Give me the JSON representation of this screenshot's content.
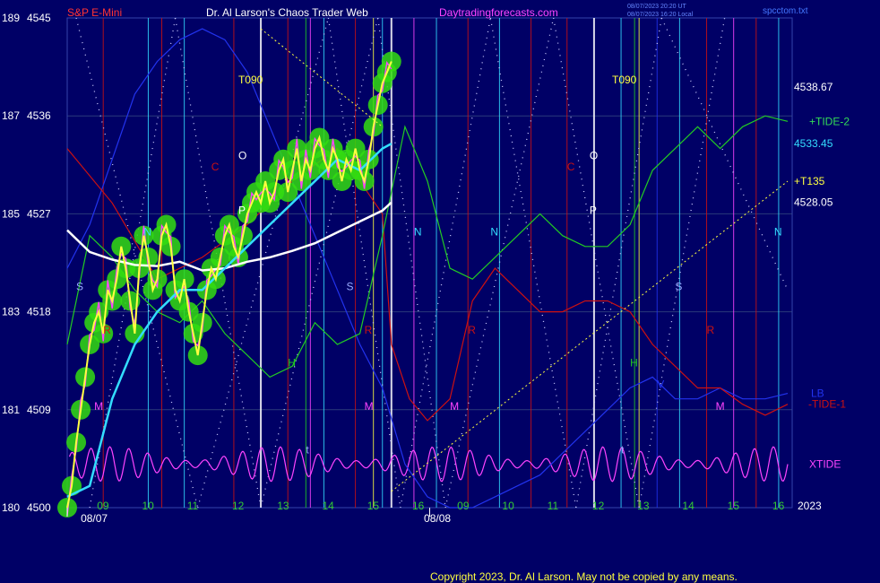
{
  "header": {
    "instrument": "S&P E-Mini",
    "site": "Dr. Al Larson's Chaos Trader Web",
    "link": "Daytradingforecasts.com",
    "ts1": "08/07/2023 20:20 UT",
    "ts2": "08/07/2023 16:20 Local",
    "file": "spcctom.txt"
  },
  "footer": {
    "copyright": "Copyright 2023, Dr. Al Larson. May not be copied by any means."
  },
  "colors": {
    "bg": "#000066",
    "grid": "#2a3a7a",
    "price": "#ffff40",
    "glow": "#33dd11",
    "magenta": "#ff44ff",
    "red": "#cc1111",
    "cyan": "#33ddff",
    "white": "#ffffff",
    "green": "#22cc22",
    "blue": "#2233ee",
    "orange": "#ff8800"
  },
  "chart_data": {
    "type": "line",
    "y_axis_left": [
      {
        "angle": "189",
        "price": "4545"
      },
      {
        "angle": "187",
        "price": "4536"
      },
      {
        "angle": "185",
        "price": "4527"
      },
      {
        "angle": "183",
        "price": "4518"
      },
      {
        "angle": "181",
        "price": "4509"
      },
      {
        "angle": "180",
        "price": "4500"
      }
    ],
    "ylim": [
      4500,
      4545
    ],
    "x_hour_ticks": [
      "09",
      "10",
      "11",
      "12",
      "13",
      "14",
      "15",
      "16",
      "09",
      "10",
      "11",
      "12",
      "13",
      "14",
      "15",
      "16"
    ],
    "x_dates": [
      "08/07",
      "08/08"
    ],
    "year": "2023",
    "right_labels": [
      {
        "text": "4538.67",
        "color": "#ffffff",
        "value": 4538.67
      },
      {
        "text": "+TIDE-2",
        "color": "#33dd55",
        "value": 4535.5
      },
      {
        "text": "4533.45",
        "color": "#33ddff",
        "value": 4533.45
      },
      {
        "text": "+T135",
        "color": "#ffff40",
        "value": 4530
      },
      {
        "text": "4528.05",
        "color": "#ffffff",
        "value": 4528.05
      },
      {
        "text": "LB",
        "color": "#2233ee",
        "value": 4510.5
      },
      {
        "text": "-TIDE-1",
        "color": "#cc1111",
        "value": 4509.5
      },
      {
        "text": "XTIDE",
        "color": "#ff44ff",
        "value": 4504
      }
    ],
    "chart_labels": [
      {
        "text": "T090",
        "color": "#ffff40"
      },
      {
        "text": "T090",
        "color": "#ffff40"
      },
      {
        "text": "O",
        "color": "#ffffff"
      },
      {
        "text": "O",
        "color": "#ffffff"
      },
      {
        "text": "P",
        "color": "#ffffff"
      },
      {
        "text": "P",
        "color": "#ffffff"
      },
      {
        "text": "C",
        "color": "#cc1111"
      },
      {
        "text": "C",
        "color": "#cc1111"
      },
      {
        "text": "N",
        "color": "#33ddff"
      },
      {
        "text": "N",
        "color": "#33ddff"
      },
      {
        "text": "N",
        "color": "#33ddff"
      },
      {
        "text": "N",
        "color": "#33ddff"
      },
      {
        "text": "S",
        "color": "#99aaff"
      },
      {
        "text": "S",
        "color": "#99aaff"
      },
      {
        "text": "S",
        "color": "#99aaff"
      },
      {
        "text": "R",
        "color": "#cc1111"
      },
      {
        "text": "R",
        "color": "#cc1111"
      },
      {
        "text": "R",
        "color": "#cc1111"
      },
      {
        "text": "R",
        "color": "#cc1111"
      },
      {
        "text": "M",
        "color": "#ff44ff"
      },
      {
        "text": "M",
        "color": "#ff44ff"
      },
      {
        "text": "M",
        "color": "#ff44ff"
      },
      {
        "text": "M",
        "color": "#ff44ff"
      },
      {
        "text": "H",
        "color": "#22cc22"
      },
      {
        "text": "H",
        "color": "#22cc22"
      },
      {
        "text": "t",
        "color": "#99aaff"
      },
      {
        "text": "t",
        "color": "#99aaff"
      },
      {
        "text": "V",
        "color": "#2233ee"
      }
    ],
    "series": [
      {
        "name": "price",
        "color": "#ffff40",
        "x": [
          0,
          0.1,
          0.2,
          0.3,
          0.4,
          0.5,
          0.6,
          0.7,
          0.8,
          0.9,
          1,
          1.1,
          1.2,
          1.3,
          1.4,
          1.5,
          1.6,
          1.7,
          1.8,
          1.9,
          2,
          2.1,
          2.2,
          2.3,
          2.4,
          2.5,
          2.6,
          2.7,
          2.8,
          2.9,
          3,
          3.1,
          3.2,
          3.3,
          3.4,
          3.5,
          3.6,
          3.7,
          3.8,
          3.9,
          4,
          4.1,
          4.2,
          4.3,
          4.4,
          4.5,
          4.6,
          4.7,
          4.8,
          4.9,
          5,
          5.1,
          5.2,
          5.3,
          5.4,
          5.5,
          5.6,
          5.7,
          5.8,
          5.9,
          6,
          6.1,
          6.2,
          6.3,
          6.4,
          6.5,
          6.6,
          6.7,
          6.8,
          6.9,
          7,
          7.1,
          7.2
        ],
        "y": [
          4500,
          4502,
          4506,
          4509,
          4512,
          4515,
          4517,
          4518,
          4516,
          4520,
          4519,
          4521,
          4524,
          4522,
          4519,
          4516,
          4522,
          4525,
          4523,
          4520,
          4521,
          4525,
          4526,
          4524,
          4520,
          4519,
          4521,
          4518,
          4516,
          4514,
          4517,
          4520,
          4522,
          4521,
          4523,
          4525,
          4526,
          4524,
          4523,
          4525,
          4527,
          4528,
          4529,
          4528,
          4530,
          4528,
          4529,
          4531,
          4532,
          4529,
          4531,
          4533,
          4530,
          4532,
          4531,
          4533,
          4534,
          4532,
          4531,
          4533,
          4532,
          4530,
          4532,
          4531,
          4533,
          4531,
          4530,
          4532,
          4535,
          4537,
          4539,
          4540,
          4541
        ]
      },
      {
        "name": "cyan average",
        "color": "#33ddff",
        "x": [
          0,
          0.5,
          1,
          1.5,
          2,
          2.5,
          3,
          3.5,
          4,
          4.5,
          5,
          5.5,
          6,
          6.5,
          7,
          7.2
        ],
        "y": [
          4501,
          4502,
          4510,
          4515,
          4518,
          4520,
          4520,
          4522,
          4524,
          4526,
          4528,
          4530,
          4532,
          4531,
          4533,
          4533.45
        ]
      },
      {
        "name": "white average",
        "color": "#ffffff",
        "x": [
          0,
          0.5,
          1,
          1.5,
          2,
          2.5,
          3,
          3.5,
          4,
          4.5,
          5,
          5.5,
          6,
          6.5,
          7,
          7.2
        ],
        "y": [
          4525.5,
          4523.5,
          4522.8,
          4522.3,
          4522.2,
          4522.6,
          4521.8,
          4522,
          4522.6,
          4523,
          4523.6,
          4524.3,
          4525.3,
          4526.3,
          4527.3,
          4528.05
        ]
      },
      {
        "name": "green tide",
        "color": "#22cc22",
        "x": [
          0,
          0.5,
          1,
          1.5,
          2,
          2.5,
          3,
          3.5,
          4,
          4.5,
          5,
          5.5,
          6,
          6.5,
          7,
          7.5,
          8,
          8.5,
          9,
          9.5,
          10,
          10.5,
          11,
          11.5,
          12,
          12.5,
          13,
          13.5,
          14,
          14.5,
          15,
          15.5,
          16
        ],
        "y": [
          4515,
          4525,
          4523,
          4520,
          4518,
          4517,
          4519,
          4516,
          4514,
          4512,
          4513,
          4517,
          4515,
          4516,
          4525,
          4535,
          4530,
          4522,
          4521,
          4523,
          4525,
          4527,
          4525,
          4524,
          4524,
          4526,
          4531,
          4533,
          4535,
          4533,
          4535,
          4536,
          4535.5
        ]
      },
      {
        "name": "red tide",
        "color": "#cc1111",
        "x": [
          0,
          1,
          2,
          3,
          4,
          5,
          6,
          7,
          7.2,
          7.6,
          8,
          8.5,
          9,
          9.5,
          10,
          10.5,
          11,
          11.5,
          12,
          12.5,
          13,
          13.5,
          14,
          14.5,
          15,
          15.5,
          16
        ],
        "y": [
          4533,
          4528,
          4521,
          4523,
          4526,
          4530,
          4533,
          4527,
          4515,
          4510,
          4508,
          4510,
          4519,
          4522,
          4520,
          4518,
          4518,
          4519,
          4519,
          4518,
          4515,
          4513,
          4511,
          4511,
          4509.5,
          4508.5,
          4509.5
        ]
      },
      {
        "name": "blue",
        "color": "#2233ee",
        "x": [
          0,
          0.5,
          1,
          1.5,
          2,
          2.5,
          3,
          3.5,
          4,
          4.5,
          5,
          5.5,
          6,
          6.5,
          7,
          7.5,
          8,
          8.5,
          9,
          9.5,
          10,
          10.5,
          11,
          11.5,
          12,
          12.5,
          13,
          13.5,
          14,
          14.5,
          15,
          15.5,
          16
        ],
        "y": [
          4522,
          4526,
          4532,
          4538,
          4541,
          4543,
          4544,
          4543,
          4540,
          4535,
          4530,
          4525,
          4520,
          4515,
          4511,
          4504,
          4501,
          4500,
          4500,
          4501,
          4502,
          4503,
          4505,
          4507,
          4509,
          4511,
          4512,
          4510,
          4510,
          4511,
          4510,
          4510,
          4510.5
        ]
      }
    ],
    "xtide": {
      "name": "XTIDE",
      "color": "#ff44ff",
      "y_center": 4504,
      "amp": 1.6,
      "cycles": 38
    },
    "t135_line": {
      "name": "+T135",
      "color": "#ffff40",
      "x": [
        7.2,
        16
      ],
      "y": [
        4501.5,
        4530
      ]
    },
    "t090_line": {
      "color": "#ffff40",
      "x": [
        4.3,
        7
      ],
      "y": [
        4544,
        4535
      ]
    }
  }
}
